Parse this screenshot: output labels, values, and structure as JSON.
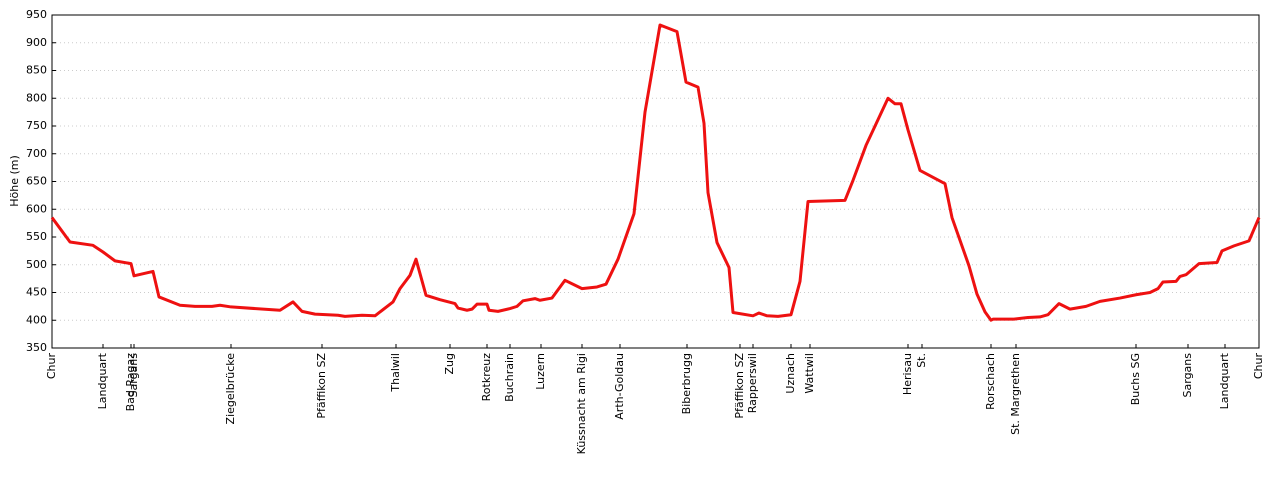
{
  "chart_data": {
    "type": "line",
    "ylabel": "Höhe (m)",
    "ylim": [
      350,
      950
    ],
    "yticks": [
      350,
      400,
      450,
      500,
      550,
      600,
      650,
      700,
      750,
      800,
      850,
      900,
      950
    ],
    "xlim": [
      0,
      1207
    ],
    "xticks": [
      {
        "value": 0,
        "label": "Chur"
      },
      {
        "value": 51,
        "label": "Landquart"
      },
      {
        "value": 79,
        "label": "Bad Ragaz"
      },
      {
        "value": 82,
        "label": "Sargans"
      },
      {
        "value": 179,
        "label": "Ziegelbrücke"
      },
      {
        "value": 270,
        "label": "Pfäffikon SZ"
      },
      {
        "value": 344,
        "label": "Thalwil"
      },
      {
        "value": 398,
        "label": "Zug"
      },
      {
        "value": 435,
        "label": "Rotkreuz"
      },
      {
        "value": 458,
        "label": "Buchrain"
      },
      {
        "value": 489,
        "label": "Luzern"
      },
      {
        "value": 530,
        "label": "Küssnacht am Rigi"
      },
      {
        "value": 568,
        "label": "Arth-Goldau"
      },
      {
        "value": 635,
        "label": "Biberbrugg"
      },
      {
        "value": 688,
        "label": "Pfäffikon SZ"
      },
      {
        "value": 701,
        "label": "Rapperswil"
      },
      {
        "value": 739,
        "label": "Uznach"
      },
      {
        "value": 758,
        "label": "Wattwil"
      },
      {
        "value": 856,
        "label": "Herisau"
      },
      {
        "value": 870,
        "label": "St."
      },
      {
        "value": 939,
        "label": "Rorschach"
      },
      {
        "value": 964,
        "label": "St. Margrethen"
      },
      {
        "value": 1084,
        "label": "Buchs SG"
      },
      {
        "value": 1136,
        "label": "Sargans"
      },
      {
        "value": 1173,
        "label": "Landquart"
      },
      {
        "value": 1207,
        "label": "Chur"
      }
    ],
    "grid": true,
    "series": [
      {
        "color": "#ee1111",
        "x": [
          0,
          18,
          41,
          51,
          63,
          79,
          82,
          101,
          107,
          128,
          143,
          160,
          168,
          179,
          228,
          241,
          250,
          263,
          286,
          293,
          310,
          323,
          341,
          348,
          358,
          364,
          374,
          388,
          403,
          406,
          415,
          420,
          425,
          435,
          437,
          446,
          458,
          465,
          471,
          483,
          488,
          500,
          513,
          530,
          545,
          554,
          566,
          582,
          593,
          608,
          625,
          634,
          646,
          652,
          656,
          665,
          677,
          681,
          701,
          707,
          715,
          726,
          739,
          748,
          756,
          793,
          801,
          814,
          836,
          843,
          849,
          856,
          868,
          893,
          900,
          917,
          925,
          933,
          939,
          941,
          948,
          962,
          976,
          988,
          996,
          1007,
          1018,
          1034,
          1048,
          1068,
          1084,
          1098,
          1106,
          1111,
          1124,
          1128,
          1134,
          1147,
          1165,
          1170,
          1182,
          1197,
          1207
        ],
        "values": [
          585,
          541,
          535,
          523,
          507,
          502,
          480,
          488,
          442,
          427,
          425,
          425,
          427,
          424,
          418,
          433,
          416,
          411,
          409,
          407,
          409,
          408,
          433,
          457,
          481,
          510,
          445,
          437,
          430,
          422,
          418,
          420,
          429,
          429,
          418,
          416,
          421,
          425,
          435,
          439,
          436,
          440,
          472,
          457,
          460,
          465,
          510,
          592,
          775,
          932,
          920,
          829,
          820,
          755,
          630,
          540,
          495,
          414,
          408,
          413,
          408,
          407,
          410,
          470,
          614,
          616,
          652,
          715,
          800,
          790,
          790,
          743,
          670,
          646,
          585,
          498,
          447,
          415,
          400,
          402,
          402,
          402,
          405,
          406,
          410,
          430,
          420,
          425,
          434,
          440,
          446,
          450,
          457,
          469,
          470,
          479,
          482,
          502,
          504,
          525,
          534,
          543,
          585
        ]
      }
    ]
  }
}
